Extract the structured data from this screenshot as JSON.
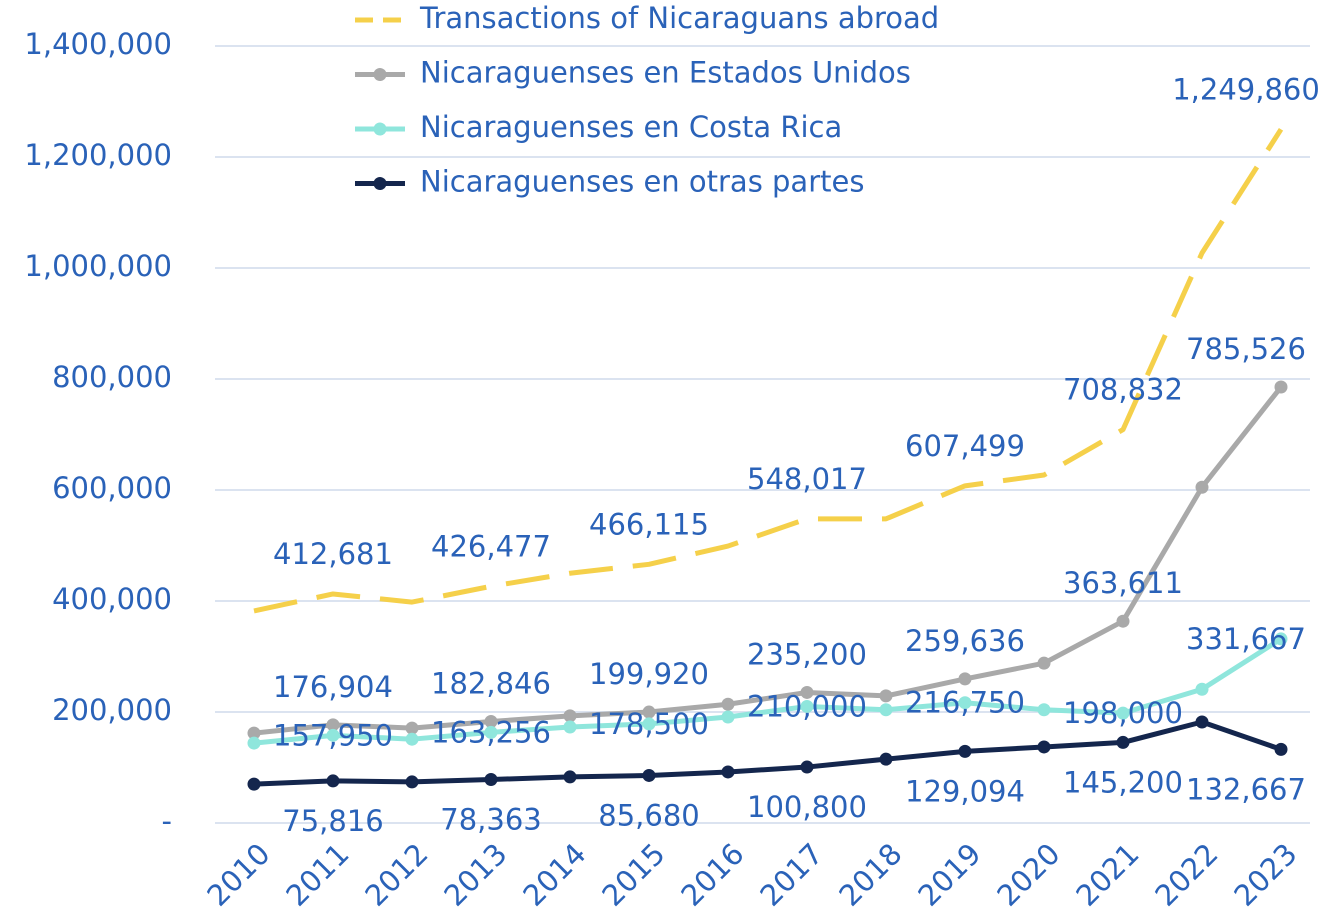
{
  "chart_data": {
    "type": "line",
    "categories": [
      "2010",
      "2011",
      "2012",
      "2013",
      "2014",
      "2015",
      "2016",
      "2017",
      "2018",
      "2019",
      "2020",
      "2021",
      "2022",
      "2023"
    ],
    "ylim": [
      0,
      1400000
    ],
    "yticks": [
      {
        "value": 0,
        "label": "-"
      },
      {
        "value": 200000,
        "label": "200,000"
      },
      {
        "value": 400000,
        "label": "400,000"
      },
      {
        "value": 600000,
        "label": "600,000"
      },
      {
        "value": 800000,
        "label": "800,000"
      },
      {
        "value": 1000000,
        "label": "1,000,000"
      },
      {
        "value": 1200000,
        "label": "1,200,000"
      },
      {
        "value": 1400000,
        "label": "1,400,000"
      }
    ],
    "grid": true,
    "series": [
      {
        "name": "Transactions of Nicaraguans abroad",
        "color": "#f5d04a",
        "line_style": "dashed",
        "markers": false,
        "values": [
          382000,
          412681,
          398000,
          426477,
          450000,
          466115,
          499000,
          548017,
          548000,
          607499,
          627000,
          708832,
          1027000,
          1249860
        ],
        "value_labels": [
          null,
          "412,681",
          null,
          "426,477",
          null,
          "466,115",
          null,
          "548,017",
          null,
          "607,499",
          null,
          "708,832",
          null,
          "1,249,860"
        ]
      },
      {
        "name": "Nicaraguenses en Estados Unidos",
        "color": "#a9a9a9",
        "line_style": "solid",
        "markers": true,
        "values": [
          162000,
          176904,
          171000,
          182846,
          193000,
          199920,
          214000,
          235200,
          229000,
          259636,
          288000,
          363611,
          605000,
          785526
        ],
        "value_labels": [
          null,
          "176,904",
          null,
          "182,846",
          null,
          "199,920",
          null,
          "235,200",
          null,
          "259,636",
          null,
          "363,611",
          null,
          "785,526"
        ]
      },
      {
        "name": "Nicaraguenses en Costa Rica",
        "color": "#8fe6dc",
        "line_style": "solid",
        "markers": true,
        "values": [
          144000,
          157950,
          151000,
          163256,
          173000,
          178500,
          191000,
          210000,
          204000,
          216750,
          204000,
          198000,
          241000,
          331667
        ],
        "value_labels": [
          null,
          "157,950",
          null,
          "163,256",
          null,
          "178,500",
          null,
          "210,000",
          null,
          "216,750",
          null,
          "198,000",
          null,
          "331,667"
        ]
      },
      {
        "name": "Nicaraguenses en otras partes",
        "color": "#14264d",
        "line_style": "solid",
        "markers": true,
        "values": [
          70000,
          75816,
          74000,
          78363,
          83000,
          85680,
          92000,
          100800,
          115000,
          129094,
          137000,
          145200,
          182000,
          132667
        ],
        "value_labels": [
          null,
          "75,816",
          null,
          "78,363",
          null,
          "85,680",
          null,
          "100,800",
          null,
          "129,094",
          null,
          "145,200",
          null,
          "132,667"
        ]
      }
    ],
    "legend": "top"
  }
}
